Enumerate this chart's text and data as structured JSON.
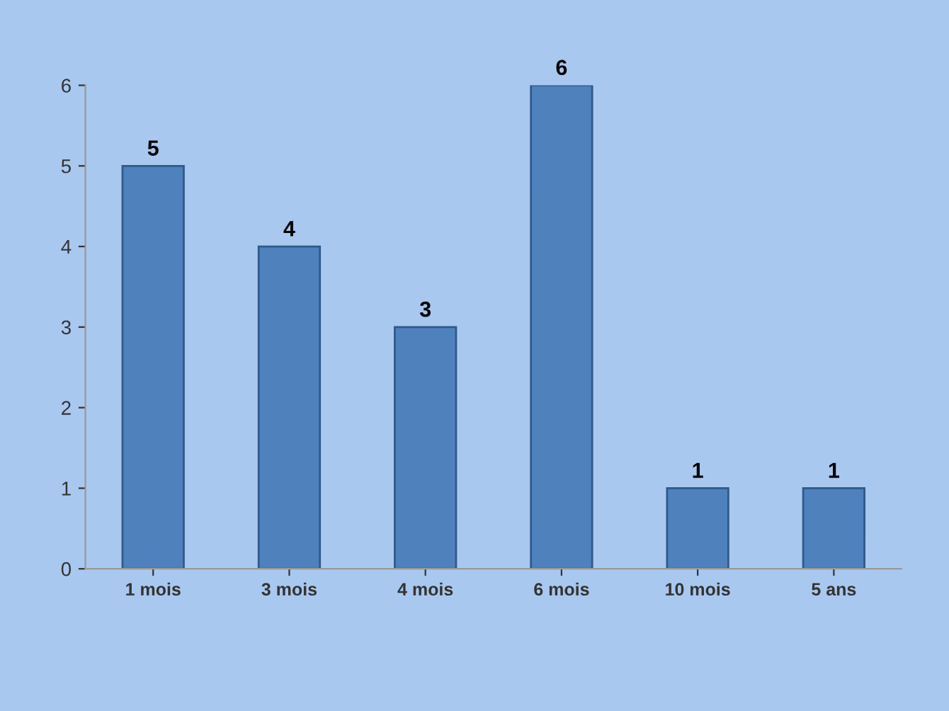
{
  "chart_data": {
    "type": "bar",
    "categories": [
      "1 mois",
      "3 mois",
      "4 mois",
      "6 mois",
      "10 mois",
      "5 ans"
    ],
    "values": [
      5,
      4,
      3,
      6,
      1,
      1
    ],
    "color": "#4f81bd",
    "ylim": [
      0,
      6
    ],
    "yticks": [
      0,
      1,
      2,
      3,
      4,
      5,
      6
    ],
    "data_labels": true
  }
}
